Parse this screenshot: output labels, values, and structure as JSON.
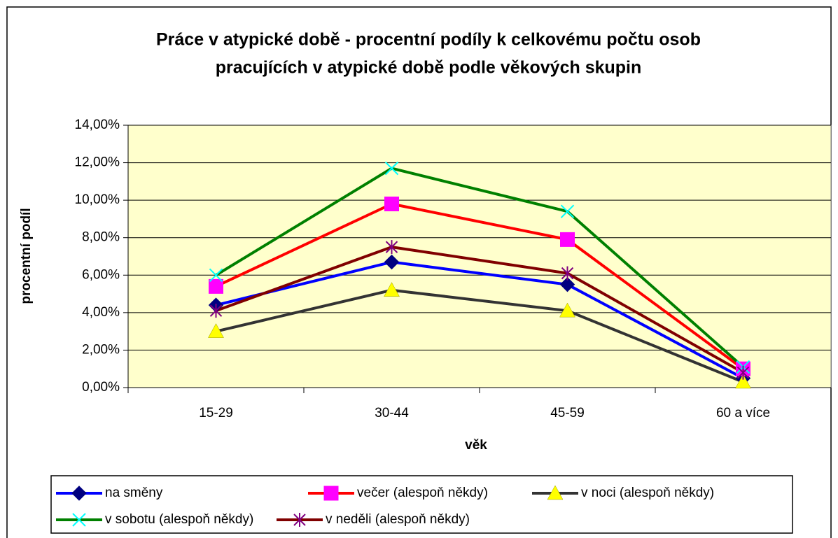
{
  "chart_data": {
    "type": "line",
    "title": [
      "Práce v atypické době - procentní podíly k celkovému počtu osob",
      "pracujících v atypické době podle věkových skupin"
    ],
    "x_label": "věk",
    "y_label": "procentní podíl",
    "categories": [
      "15-29",
      "30-44",
      "45-59",
      "60 a více"
    ],
    "series": [
      {
        "name": "na směny",
        "color": "#0000ff",
        "marker_color": "#000080",
        "marker": "diamond",
        "values": [
          4.4,
          6.7,
          5.5,
          0.5
        ]
      },
      {
        "name": "večer (alespoň někdy)",
        "color": "#ff0000",
        "marker_color": "#ff00ff",
        "marker": "square",
        "values": [
          5.4,
          9.8,
          7.9,
          1.0
        ]
      },
      {
        "name": "v noci (alespoň někdy)",
        "color": "#333333",
        "marker_color": "#ffff00",
        "marker": "triangle",
        "values": [
          3.0,
          5.2,
          4.1,
          0.3
        ]
      },
      {
        "name": "v sobotu (alespoň někdy)",
        "color": "#008000",
        "marker_color": "#00ffff",
        "marker": "x",
        "values": [
          6.0,
          11.7,
          9.4,
          1.1
        ]
      },
      {
        "name": "v neděli (alespoň někdy)",
        "color": "#800000",
        "marker_color": "#800080",
        "marker": "star",
        "values": [
          4.1,
          7.5,
          6.1,
          0.8
        ]
      }
    ],
    "ylim": [
      0,
      14
    ],
    "yticks": [
      {
        "value": 0,
        "label": "0,00%"
      },
      {
        "value": 2,
        "label": "2,00%"
      },
      {
        "value": 4,
        "label": "4,00%"
      },
      {
        "value": 6,
        "label": "6,00%"
      },
      {
        "value": 8,
        "label": "8,00%"
      },
      {
        "value": 10,
        "label": "10,00%"
      },
      {
        "value": 12,
        "label": "12,00%"
      },
      {
        "value": 14,
        "label": "14,00%"
      }
    ],
    "grid": true,
    "plot_background": "#ffffcc",
    "legend": "bottom"
  }
}
